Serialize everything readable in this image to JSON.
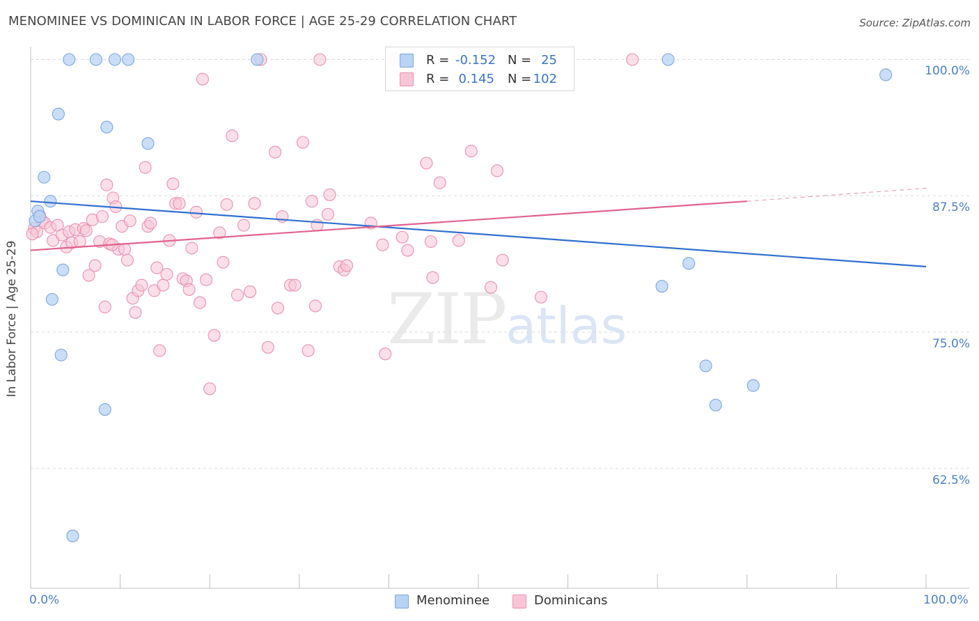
{
  "title": "MENOMINEE VS DOMINICAN IN LABOR FORCE | AGE 25-29 CORRELATION CHART",
  "source": "Source: ZipAtlas.com",
  "watermark": {
    "part1": "ZIP",
    "part2": "atlas"
  },
  "colors": {
    "menominee_fill": "#b9d3f5",
    "menominee_stroke": "#7aa6e0",
    "menominee_line": "#2f6fcf",
    "dominican_fill": "#f8c5d6",
    "dominican_stroke": "#ea8fae",
    "dominican_line": "#e0628f",
    "tick_text": "#4a7fc9",
    "grid": "#d9d9d9"
  },
  "legend": {
    "rows": [
      {
        "r_label": "R =",
        "r_value": "-0.152",
        "n_label": "N =",
        "n_value": "25"
      },
      {
        "r_label": "R =",
        "r_value": "0.145",
        "n_label": "N =",
        "n_value": "102"
      }
    ]
  },
  "bottom_legend": {
    "menominee": "Menominee",
    "dominicans": "Dominicans"
  },
  "chart_data": {
    "type": "scatter",
    "title": "MENOMINEE VS DOMINICAN IN LABOR FORCE | AGE 25-29 CORRELATION CHART",
    "xlabel": "",
    "ylabel": "In Labor Force | Age 25-29",
    "xlim": [
      0,
      100
    ],
    "ylim": [
      51.5,
      101.5
    ],
    "x_tick_labels": [
      "0.0%",
      "100.0%"
    ],
    "y_ticks": [
      62.5,
      75.0,
      87.5,
      100.0
    ],
    "y_tick_labels": [
      "62.5%",
      "75.0%",
      "87.5%",
      "100.0%"
    ],
    "grid": true,
    "legend_position": "top-center",
    "series": [
      {
        "name": "Menominee",
        "r": -0.152,
        "n": 25,
        "trend": {
          "x": [
            0,
            100
          ],
          "y": [
            87.0,
            81.0
          ]
        },
        "points": [
          [
            0.5,
            85.2
          ],
          [
            0.8,
            86.1
          ],
          [
            1.0,
            85.6
          ],
          [
            1.5,
            89.2
          ],
          [
            2.2,
            87.0
          ],
          [
            2.4,
            78.0
          ],
          [
            3.1,
            95.0
          ],
          [
            3.4,
            72.9
          ],
          [
            3.6,
            80.7
          ],
          [
            4.3,
            100.0
          ],
          [
            4.7,
            56.3
          ],
          [
            7.3,
            100.0
          ],
          [
            8.3,
            67.9
          ],
          [
            8.5,
            93.8
          ],
          [
            9.4,
            100.0
          ],
          [
            10.9,
            100.0
          ],
          [
            13.1,
            92.3
          ],
          [
            25.3,
            100.0
          ],
          [
            70.5,
            79.2
          ],
          [
            71.2,
            100.0
          ],
          [
            73.5,
            81.3
          ],
          [
            75.4,
            71.9
          ],
          [
            76.5,
            68.3
          ],
          [
            80.7,
            70.1
          ],
          [
            95.5,
            98.6
          ]
        ]
      },
      {
        "name": "Dominicans",
        "r": 0.145,
        "n": 102,
        "trend": {
          "x": [
            0,
            80
          ],
          "y": [
            82.5,
            87.0
          ]
        },
        "trend_dashed": {
          "x": [
            80,
            100
          ],
          "y": [
            87.0,
            88.2
          ]
        },
        "points": [
          [
            0.4,
            84.5
          ],
          [
            0.7,
            84.2
          ],
          [
            1.0,
            85.7
          ],
          [
            1.3,
            85.2
          ],
          [
            1.6,
            85.0
          ],
          [
            2.2,
            84.6
          ],
          [
            2.5,
            83.4
          ],
          [
            3.0,
            84.8
          ],
          [
            3.5,
            83.9
          ],
          [
            4.0,
            82.8
          ],
          [
            4.3,
            84.2
          ],
          [
            4.6,
            83.2
          ],
          [
            5.0,
            84.4
          ],
          [
            5.5,
            83.3
          ],
          [
            5.9,
            84.5
          ],
          [
            6.2,
            84.3
          ],
          [
            6.5,
            80.2
          ],
          [
            6.9,
            85.3
          ],
          [
            7.2,
            81.1
          ],
          [
            7.7,
            83.3
          ],
          [
            8.0,
            85.6
          ],
          [
            8.3,
            77.3
          ],
          [
            8.5,
            88.5
          ],
          [
            8.8,
            83.1
          ],
          [
            9.2,
            87.3
          ],
          [
            9.5,
            86.5
          ],
          [
            9.8,
            82.6
          ],
          [
            10.2,
            84.7
          ],
          [
            10.5,
            82.6
          ],
          [
            10.8,
            81.6
          ],
          [
            11.1,
            85.2
          ],
          [
            11.4,
            78.1
          ],
          [
            11.7,
            76.8
          ],
          [
            12.0,
            78.8
          ],
          [
            12.4,
            79.3
          ],
          [
            12.8,
            90.1
          ],
          [
            13.1,
            84.7
          ],
          [
            13.4,
            85.0
          ],
          [
            13.8,
            78.8
          ],
          [
            14.1,
            80.9
          ],
          [
            14.4,
            73.3
          ],
          [
            14.8,
            79.3
          ],
          [
            15.2,
            80.3
          ],
          [
            15.5,
            83.4
          ],
          [
            15.9,
            88.6
          ],
          [
            16.2,
            86.8
          ],
          [
            16.6,
            86.8
          ],
          [
            17.0,
            79.9
          ],
          [
            17.4,
            79.7
          ],
          [
            17.7,
            78.9
          ],
          [
            18.0,
            82.7
          ],
          [
            18.5,
            86.0
          ],
          [
            18.9,
            77.7
          ],
          [
            19.2,
            98.2
          ],
          [
            19.6,
            79.8
          ],
          [
            20.0,
            69.8
          ],
          [
            20.5,
            74.7
          ],
          [
            21.1,
            84.1
          ],
          [
            21.5,
            81.4
          ],
          [
            21.9,
            86.7
          ],
          [
            22.5,
            93.0
          ],
          [
            23.1,
            78.4
          ],
          [
            23.8,
            84.8
          ],
          [
            24.5,
            78.7
          ],
          [
            25.0,
            86.8
          ],
          [
            25.7,
            100.0
          ],
          [
            26.5,
            73.6
          ],
          [
            27.3,
            91.5
          ],
          [
            27.6,
            77.2
          ],
          [
            28.1,
            85.6
          ],
          [
            29.0,
            79.3
          ],
          [
            29.5,
            79.3
          ],
          [
            30.4,
            92.4
          ],
          [
            31.0,
            73.3
          ],
          [
            31.4,
            87.0
          ],
          [
            31.8,
            77.4
          ],
          [
            32.0,
            84.8
          ],
          [
            32.3,
            100.0
          ],
          [
            33.2,
            85.8
          ],
          [
            33.4,
            87.6
          ],
          [
            34.5,
            81.0
          ],
          [
            35.0,
            80.7
          ],
          [
            35.3,
            81.1
          ],
          [
            38.0,
            85.0
          ],
          [
            39.3,
            83.0
          ],
          [
            39.6,
            73.0
          ],
          [
            40.7,
            100.0
          ],
          [
            41.5,
            83.7
          ],
          [
            42.1,
            82.5
          ],
          [
            44.2,
            90.5
          ],
          [
            44.7,
            83.3
          ],
          [
            44.9,
            80.0
          ],
          [
            45.7,
            88.7
          ],
          [
            47.8,
            83.4
          ],
          [
            49.2,
            91.6
          ],
          [
            51.4,
            79.1
          ],
          [
            52.1,
            89.8
          ],
          [
            52.7,
            81.6
          ],
          [
            57.0,
            78.2
          ],
          [
            67.2,
            100.0
          ],
          [
            0.2,
            84.0
          ],
          [
            9.1,
            83.0
          ]
        ]
      }
    ]
  }
}
